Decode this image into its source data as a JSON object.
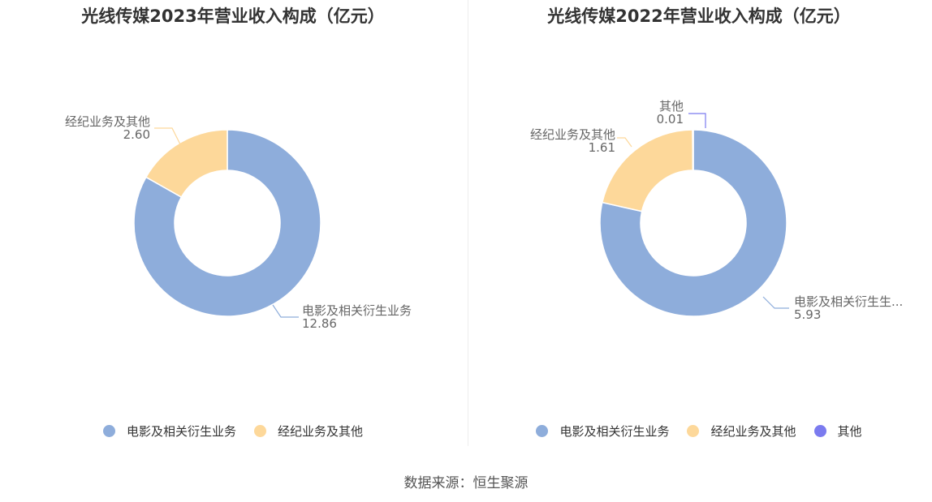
{
  "source": "数据来源：恒生聚源",
  "colors": {
    "film": "#8eaddb",
    "brokerage": "#fdd89a",
    "other": "#7b7bef"
  },
  "chart_data": [
    {
      "type": "pie",
      "title": "光线传媒2023年营业收入构成（亿元）",
      "slices": [
        {
          "name": "电影及相关衍生业务",
          "value": 12.86,
          "label_name": "电影及相关衍生业务",
          "label_value": "12.86",
          "color": "#8eaddb"
        },
        {
          "name": "经纪业务及其他",
          "value": 2.6,
          "label_name": "经纪业务及其他",
          "label_value": "2.60",
          "color": "#fdd89a"
        }
      ],
      "legend": [
        {
          "name": "电影及相关衍生业务",
          "color": "#8eaddb"
        },
        {
          "name": "经纪业务及其他",
          "color": "#fdd89a"
        }
      ],
      "legend_position": "bottom"
    },
    {
      "type": "pie",
      "title": "光线传媒2022年营业收入构成（亿元）",
      "slices": [
        {
          "name": "电影及相关衍生业务",
          "value": 5.93,
          "label_name": "电影及相关衍生生...",
          "label_value": "5.93",
          "color": "#8eaddb"
        },
        {
          "name": "经纪业务及其他",
          "value": 1.61,
          "label_name": "经纪业务及其他",
          "label_value": "1.61",
          "color": "#fdd89a"
        },
        {
          "name": "其他",
          "value": 0.01,
          "label_name": "其他",
          "label_value": "0.01",
          "color": "#7b7bef"
        }
      ],
      "legend": [
        {
          "name": "电影及相关衍生业务",
          "color": "#8eaddb"
        },
        {
          "name": "经纪业务及其他",
          "color": "#fdd89a"
        },
        {
          "name": "其他",
          "color": "#7b7bef"
        }
      ],
      "legend_position": "bottom"
    }
  ]
}
